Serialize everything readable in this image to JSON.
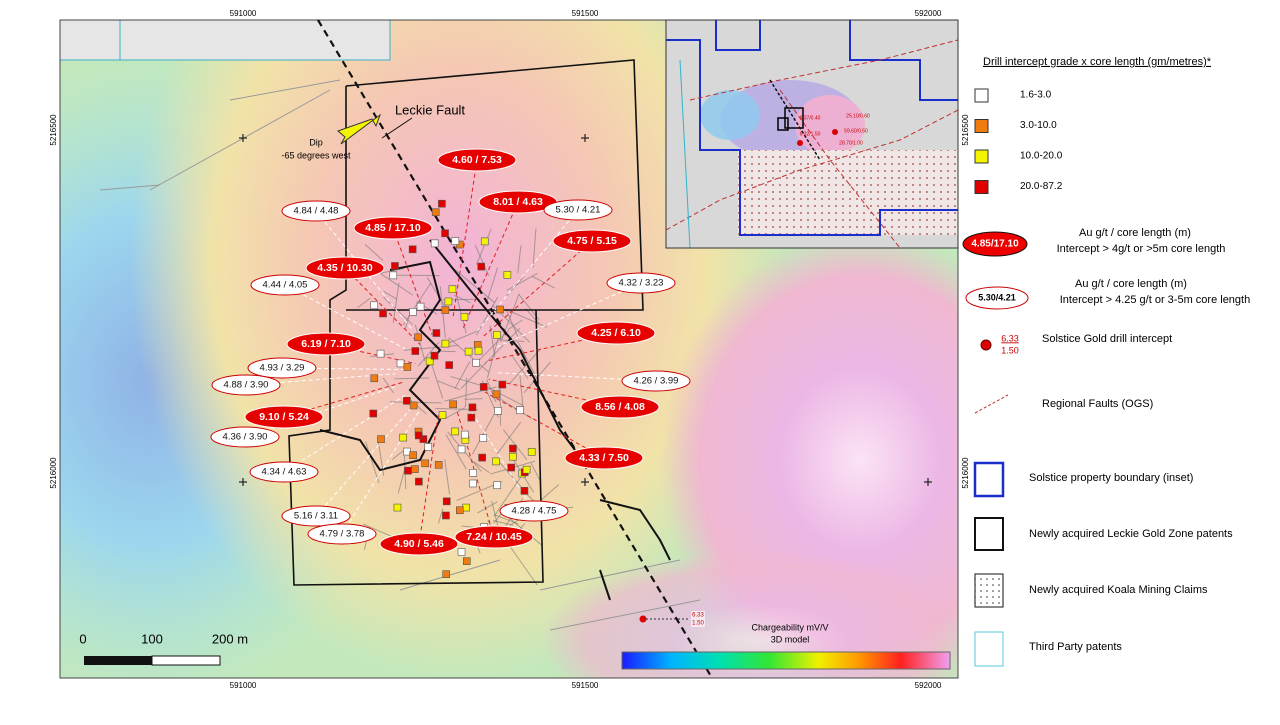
{
  "grid_labels": {
    "top": [
      "591000",
      "591500",
      "592000"
    ],
    "bottom": [
      "591000",
      "591500",
      "592000"
    ],
    "left": [
      "5216500",
      "5216000"
    ],
    "right": [
      "5216500",
      "5216000"
    ]
  },
  "map": {
    "fault_label": "Leckie Fault",
    "dip": "Dip",
    "dip_note": "-65 degrees west",
    "red_intercepts": [
      "4.60 / 7.53",
      "8.01 / 4.63",
      "4.85 / 17.10",
      "4.75 / 5.15",
      "4.35 / 10.30",
      "4.25 / 6.10",
      "6.19 / 7.10",
      "9.10 / 5.24",
      "8.56 / 4.08",
      "4.33 / 7.50",
      "4.90 / 5.46",
      "7.24 / 10.45"
    ],
    "white_intercepts": [
      "4.84 / 4.48",
      "5.30 / 4.21",
      "4.44 / 4.05",
      "4.32 / 3.23",
      "4.93 / 3.29",
      "4.88 / 3.90",
      "4.26 / 3.99",
      "4.36 / 3.90",
      "4.34 / 4.63",
      "5.16 / 3.11",
      "4.79 / 3.78",
      "4.28 / 4.75"
    ],
    "solstice_intercept": {
      "grade": "6.33",
      "length": "1.50"
    },
    "scale": [
      "0",
      "100",
      "200 m"
    ],
    "colorbar_title": "Chargeability mV/V",
    "colorbar_subtitle": "3D model"
  },
  "inset": {
    "labels": [
      "8.37/0.40",
      "25.10/0.60",
      "59.60/0.50",
      "28.70/1.00",
      "6.32/1.50"
    ]
  },
  "legend": {
    "title": "Drill intercept grade  x core length (gm/metres)*",
    "grade_classes": [
      "1.6-3.0",
      "3.0-10.0",
      "10.0-20.0",
      "20.0-87.2"
    ],
    "major": {
      "sample": "4.85/17.10",
      "line1": "Au g/t / core length (m)",
      "line2": "Intercept > 4g/t or >5m core length"
    },
    "minor": {
      "sample": "5.30/4.21",
      "line1": "Au g/t / core length (m)",
      "line2": "Intercept > 4.25 g/t or 3-5m core length"
    },
    "solstice": {
      "grade": "6.33",
      "length": "1.50",
      "label": "Solstice Gold drill intercept"
    },
    "faults": "Regional Faults (OGS)",
    "boundaries": [
      "Solstice property boundary (inset)",
      "Newly acquired Leckie Gold Zone patents",
      "Newly acquired Koala Mining Claims",
      "Third Party patents"
    ]
  }
}
